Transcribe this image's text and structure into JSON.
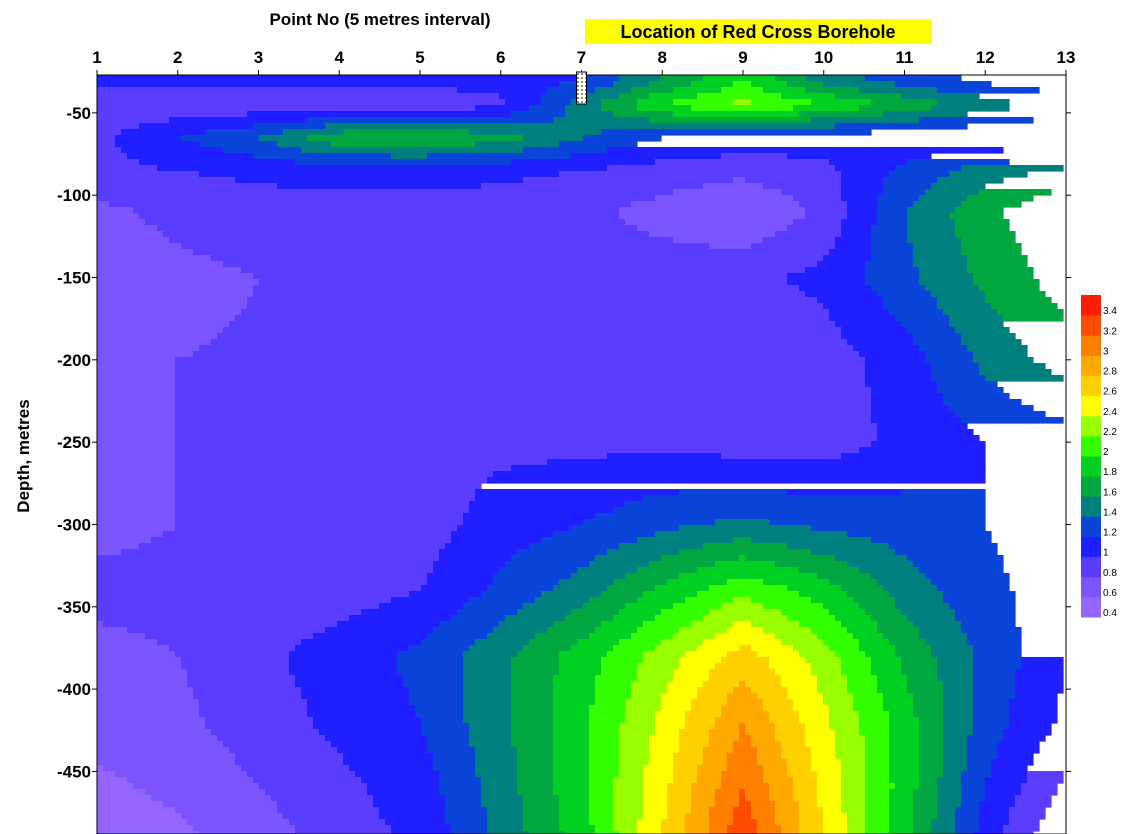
{
  "chart_data": {
    "type": "heatmap",
    "subtype": "filled-contour",
    "title": "",
    "xlabel": "Point No (5 metres interval)",
    "ylabel": "Depth, metres",
    "x_ticks": [
      1,
      2,
      3,
      4,
      5,
      6,
      7,
      8,
      9,
      10,
      11,
      12,
      13
    ],
    "y_ticks": [
      -50,
      -100,
      -150,
      -200,
      -250,
      -300,
      -350,
      -400,
      -450
    ],
    "xlim": [
      1,
      13
    ],
    "ylim": [
      -488,
      -27
    ],
    "x_axis_position": "top",
    "grid": false,
    "annotation": {
      "text": "Location of Red Cross Borehole",
      "highlight_color": "#ffff00",
      "borehole_at_point": 7
    },
    "colorbar": {
      "position": "right",
      "levels": [
        0.4,
        0.6,
        0.8,
        1,
        1.2,
        1.4,
        1.6,
        1.8,
        2,
        2.2,
        2.4,
        2.6,
        2.8,
        3,
        3.2,
        3.4
      ],
      "colors": [
        "#9466ff",
        "#7c55ff",
        "#5b3dff",
        "#1f1fff",
        "#0a44d8",
        "#007f7f",
        "#00a640",
        "#00d020",
        "#33ff00",
        "#99ff00",
        "#ffff00",
        "#ffd000",
        "#ffaa00",
        "#ff7f00",
        "#ff4c00",
        "#ff1c00"
      ]
    },
    "depths": [
      -30,
      -45,
      -65,
      -85,
      -110,
      -150,
      -200,
      -250,
      -300,
      -340,
      -380,
      -420,
      -460,
      -490
    ],
    "values": [
      [
        1.05,
        1.05,
        1.05,
        1.05,
        1.05,
        1.1,
        1.2,
        1.6,
        2.0,
        1.5,
        1.3,
        1.15,
        1.05
      ],
      [
        0.85,
        0.85,
        0.85,
        0.85,
        0.85,
        0.95,
        1.5,
        2.0,
        2.25,
        2.0,
        1.75,
        1.5,
        1.3
      ],
      [
        0.95,
        1.2,
        1.4,
        1.75,
        1.8,
        1.7,
        1.4,
        1.2,
        1.15,
        1.1,
        1.05,
        1.0,
        1.0
      ],
      [
        0.95,
        1.0,
        1.05,
        1.1,
        1.1,
        1.05,
        1.0,
        0.92,
        0.85,
        0.95,
        1.25,
        1.5,
        1.65
      ],
      [
        0.75,
        0.85,
        0.9,
        0.9,
        0.9,
        0.9,
        0.85,
        0.72,
        0.6,
        0.85,
        1.4,
        1.75,
        2.0
      ],
      [
        0.7,
        0.75,
        0.8,
        0.82,
        0.85,
        0.85,
        0.88,
        0.92,
        0.95,
        1.05,
        1.35,
        1.65,
        1.9
      ],
      [
        0.75,
        0.8,
        0.82,
        0.85,
        0.85,
        0.85,
        0.85,
        0.85,
        0.85,
        0.9,
        1.1,
        1.45,
        1.7
      ],
      [
        0.7,
        0.8,
        0.82,
        0.85,
        0.9,
        0.95,
        0.95,
        0.95,
        0.9,
        0.9,
        1.05,
        1.2,
        1.3
      ],
      [
        0.75,
        0.8,
        0.82,
        0.85,
        0.9,
        1.1,
        1.2,
        1.35,
        1.45,
        1.35,
        1.3,
        1.2,
        1.1
      ],
      [
        0.85,
        0.85,
        0.88,
        0.9,
        1.0,
        1.25,
        1.5,
        1.85,
        2.15,
        1.9,
        1.5,
        1.25,
        1.1
      ],
      [
        0.75,
        0.8,
        0.95,
        1.1,
        1.25,
        1.55,
        1.9,
        2.3,
        2.7,
        2.3,
        1.75,
        1.35,
        1.0
      ],
      [
        0.7,
        0.75,
        0.9,
        1.05,
        1.2,
        1.55,
        1.95,
        2.45,
        3.0,
        2.45,
        1.9,
        1.3,
        0.95
      ],
      [
        0.55,
        0.65,
        0.8,
        0.95,
        1.1,
        1.5,
        1.95,
        2.55,
        3.2,
        2.55,
        1.9,
        1.2,
        0.75
      ],
      [
        0.45,
        0.55,
        0.7,
        0.9,
        1.05,
        1.45,
        1.9,
        2.6,
        3.35,
        2.6,
        1.85,
        1.1,
        0.6
      ]
    ]
  }
}
